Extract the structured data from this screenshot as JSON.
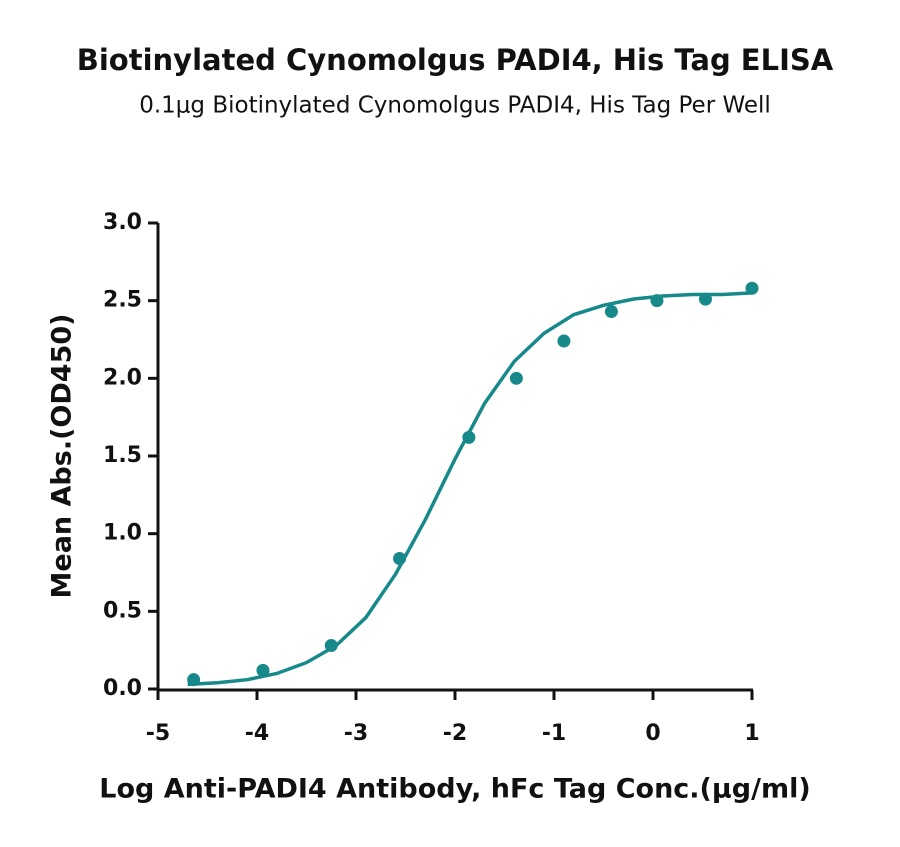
{
  "chart_data": {
    "type": "scatter",
    "title": "Biotinylated Cynomolgus PADI4, His Tag ELISA",
    "subtitle": "0.1μg Biotinylated Cynomolgus PADI4, His Tag Per Well",
    "x_label": "Log Anti-PADI4 Antibody, hFc Tag Conc.(μg/ml)",
    "y_label": "Mean Abs.(OD450)",
    "xlim": [
      -5,
      1
    ],
    "xticks": [
      -5,
      -4,
      -3,
      -2,
      -1,
      0,
      1
    ],
    "ylim": [
      0,
      3
    ],
    "yticks": [
      {
        "value": 0,
        "label": "0.0"
      },
      0.5,
      {
        "value": 1,
        "label": "1.0"
      },
      1.5,
      {
        "value": 2,
        "label": "2.0"
      },
      2.5,
      {
        "value": 3,
        "label": "3.0"
      }
    ],
    "series": [
      {
        "type": "scatter",
        "color": "#17898b",
        "x": [
          -4.64,
          -3.94,
          -3.25,
          -2.56,
          -1.86,
          -1.38,
          -0.9,
          -0.42,
          0.04,
          0.53,
          1.0
        ],
        "values": [
          0.06,
          0.12,
          0.28,
          0.84,
          1.62,
          2.0,
          2.24,
          2.43,
          2.5,
          2.51,
          2.58
        ]
      },
      {
        "type": "line",
        "color": "#17898b",
        "x": [
          -4.7,
          -4.4,
          -4.1,
          -3.8,
          -3.5,
          -3.2,
          -2.9,
          -2.6,
          -2.3,
          -2.0,
          -1.7,
          -1.4,
          -1.1,
          -0.8,
          -0.5,
          -0.2,
          0.1,
          0.4,
          0.7,
          1.0
        ],
        "values": [
          0.03,
          0.04,
          0.06,
          0.1,
          0.17,
          0.28,
          0.46,
          0.74,
          1.09,
          1.48,
          1.84,
          2.11,
          2.29,
          2.41,
          2.47,
          2.51,
          2.53,
          2.54,
          2.54,
          2.55
        ]
      }
    ]
  }
}
